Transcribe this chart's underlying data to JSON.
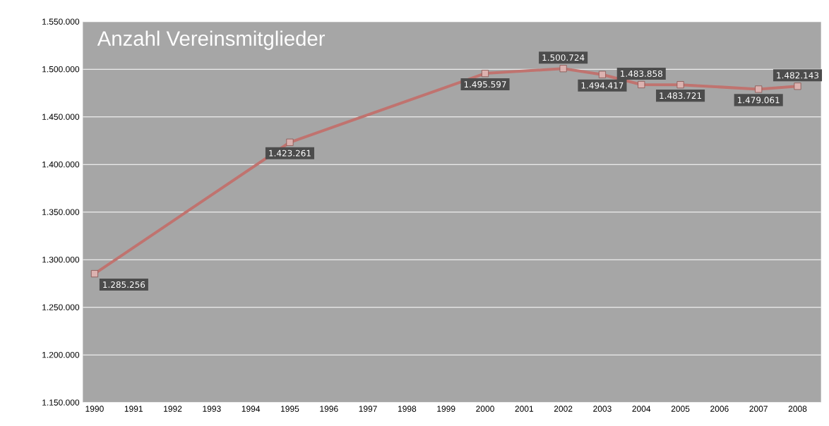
{
  "chart_data": {
    "type": "line",
    "title": "Anzahl Vereinsmitglieder",
    "x": [
      1990,
      1995,
      2000,
      2002,
      2003,
      2004,
      2005,
      2007,
      2008
    ],
    "series": [
      {
        "color": "#c0736f",
        "values": [
          1285256,
          1423261,
          1495597,
          1500724,
          1494417,
          1483858,
          1483721,
          1479061,
          1482143
        ],
        "value_labels": [
          "1.285.256",
          "1.423.261",
          "1.495.597",
          "1.500.724",
          "1.494.417",
          "1.483.858",
          "1.483.721",
          "1.479.061",
          "1.482.143"
        ]
      }
    ],
    "xlim": [
      1989.7,
      2008.6
    ],
    "xticks": [
      1990,
      1991,
      1992,
      1993,
      1994,
      1995,
      1996,
      1997,
      1998,
      1999,
      2000,
      2001,
      2002,
      2003,
      2004,
      2005,
      2006,
      2007,
      2008
    ],
    "ylim": [
      1150000,
      1550000
    ],
    "yticks": [
      {
        "value": 1150000,
        "label": "1.150.000"
      },
      {
        "value": 1200000,
        "label": "1.200.000"
      },
      {
        "value": 1250000,
        "label": "1.250.000"
      },
      {
        "value": 1300000,
        "label": "1.300.000"
      },
      {
        "value": 1350000,
        "label": "1.350.000"
      },
      {
        "value": 1400000,
        "label": "1.400.000"
      },
      {
        "value": 1450000,
        "label": "1.450.000"
      },
      {
        "value": 1500000,
        "label": "1.500.000"
      },
      {
        "value": 1550000,
        "label": "1.550.000"
      }
    ],
    "grid": "y",
    "marker": "square",
    "line_style": "solid"
  }
}
